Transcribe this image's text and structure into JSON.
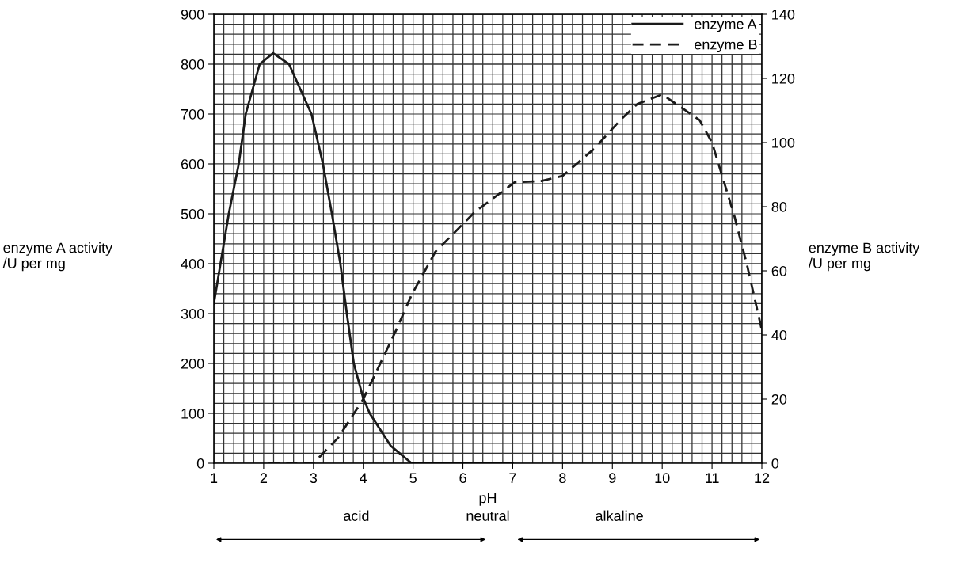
{
  "chart_data": {
    "type": "line",
    "xlabel": "pH",
    "ylabel": "enzyme A activity\n/U per mg",
    "y2label": "enzyme B activity\n/U per mg",
    "xlim": [
      1,
      12
    ],
    "xticks": [
      1,
      2,
      3,
      4,
      5,
      6,
      7,
      8,
      9,
      10,
      11,
      12
    ],
    "ylim": [
      0,
      900
    ],
    "yticks": [
      0,
      100,
      200,
      300,
      400,
      500,
      600,
      700,
      800,
      900
    ],
    "y2lim": [
      0,
      140
    ],
    "y2ticks": [
      0,
      20,
      40,
      60,
      80,
      100,
      120,
      140
    ],
    "grid": true,
    "legend": "top right",
    "series": [
      {
        "name": "enzyme A",
        "color": "#1a1a1a",
        "line_style": "solid",
        "x": [
          1,
          1.3,
          1.5,
          1.64,
          1.92,
          2.19,
          2.51,
          2.96,
          3.19,
          3.37,
          3.54,
          3.67,
          3.81,
          4.0,
          4.13,
          4.55,
          4.97,
          7
        ],
        "values": [
          320,
          500,
          600,
          700,
          800,
          822,
          800,
          700,
          600,
          500,
          400,
          300,
          200,
          130,
          100,
          35,
          0,
          0
        ]
      },
      {
        "name": "enzyme B",
        "color": "#1a1a1a",
        "line_style": "dashed",
        "axis": "y2",
        "x": [
          2.1,
          3.0,
          3.5,
          4.0,
          4.66,
          4.97,
          5.45,
          6.25,
          7.04,
          7.57,
          8.0,
          8.63,
          9.16,
          9.5,
          10.0,
          10.75,
          11.0,
          11.45,
          11.7,
          12
        ],
        "values": [
          0,
          0,
          8,
          20,
          41.5,
          52.5,
          66,
          78.5,
          87.6,
          88,
          89.6,
          98,
          107,
          112,
          115,
          107,
          100,
          77,
          62,
          41.5
        ]
      }
    ],
    "annotations": [
      "acid",
      "neutral",
      "alkaline"
    ]
  }
}
